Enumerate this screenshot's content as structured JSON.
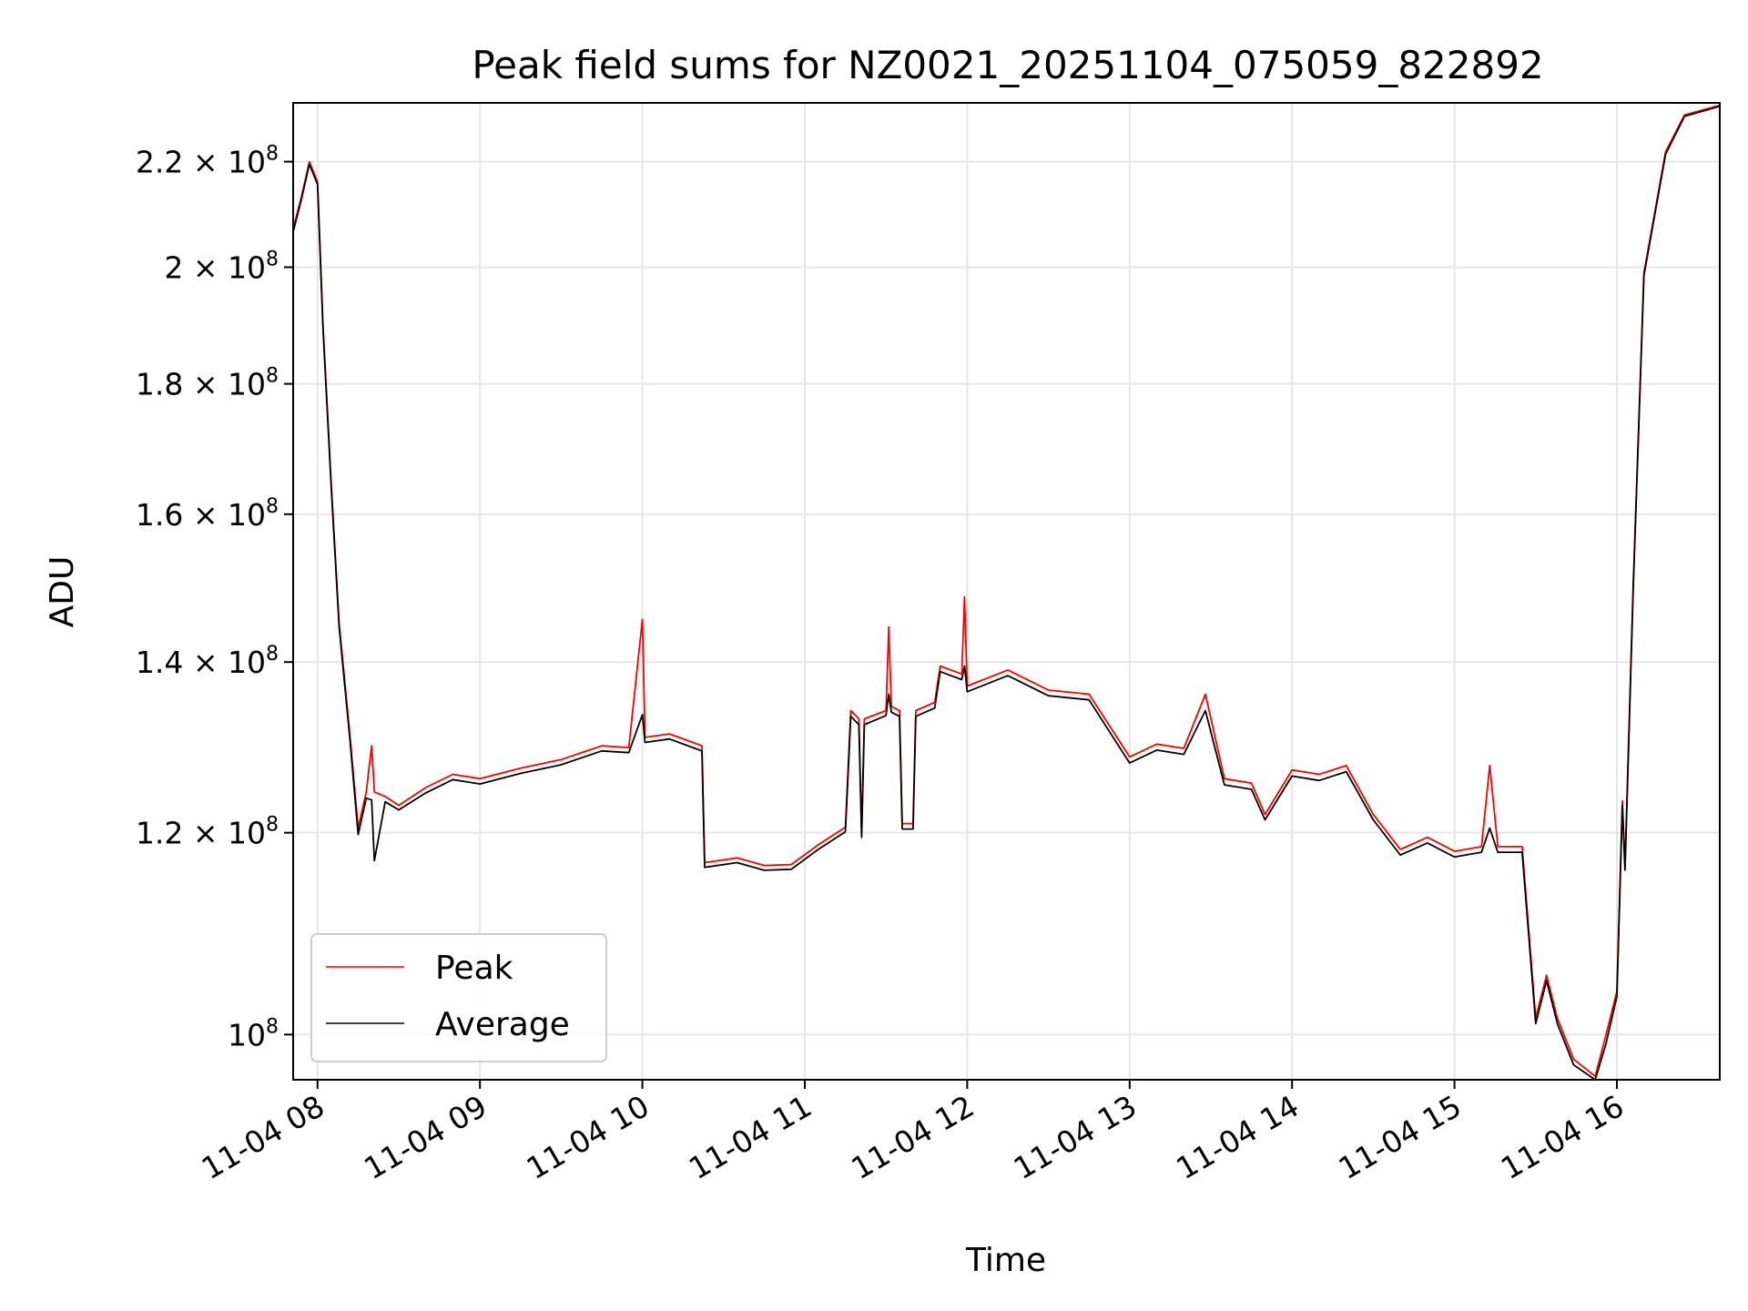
{
  "chart_data": {
    "type": "line",
    "title": "Peak field sums for NZ0021_20251104_075059_822892",
    "xlabel": "Time",
    "ylabel": "ADU",
    "yscale": "log",
    "grid": true,
    "legend_position": "lower-left",
    "xlim": [
      "2025-11-04 07:51",
      "2025-11-04 16:38"
    ],
    "ylim": [
      96000000,
      232000000
    ],
    "x_ticks": [
      {
        "time": "2025-11-04 08:00",
        "label": "11-04 08"
      },
      {
        "time": "2025-11-04 09:00",
        "label": "11-04 09"
      },
      {
        "time": "2025-11-04 10:00",
        "label": "11-04 10"
      },
      {
        "time": "2025-11-04 11:00",
        "label": "11-04 11"
      },
      {
        "time": "2025-11-04 12:00",
        "label": "11-04 12"
      },
      {
        "time": "2025-11-04 13:00",
        "label": "11-04 13"
      },
      {
        "time": "2025-11-04 14:00",
        "label": "11-04 14"
      },
      {
        "time": "2025-11-04 15:00",
        "label": "11-04 15"
      },
      {
        "time": "2025-11-04 16:00",
        "label": "11-04 16"
      }
    ],
    "y_ticks": [
      {
        "value": 100000000,
        "mantissa": "",
        "exp": "8"
      },
      {
        "value": 120000000,
        "mantissa": "1.2",
        "exp": "8"
      },
      {
        "value": 140000000,
        "mantissa": "1.4",
        "exp": "8"
      },
      {
        "value": 160000000,
        "mantissa": "1.6",
        "exp": "8"
      },
      {
        "value": 180000000,
        "mantissa": "1.8",
        "exp": "8"
      },
      {
        "value": 200000000,
        "mantissa": "2",
        "exp": "8"
      },
      {
        "value": 220000000,
        "mantissa": "2.2",
        "exp": "8"
      }
    ],
    "series": [
      {
        "name": "Peak",
        "color": "#ff0000",
        "points": [
          [
            "2025-11-04 07:51",
            207000000
          ],
          [
            "2025-11-04 07:54",
            213000000
          ],
          [
            "2025-11-04 07:57",
            220000000
          ],
          [
            "2025-11-04 08:00",
            216000000
          ],
          [
            "2025-11-04 08:02",
            190000000
          ],
          [
            "2025-11-04 08:05",
            165000000
          ],
          [
            "2025-11-04 08:08",
            145000000
          ],
          [
            "2025-11-04 08:12",
            131000000
          ],
          [
            "2025-11-04 08:15",
            120500000
          ],
          [
            "2025-11-04 08:18",
            124500000
          ],
          [
            "2025-11-04 08:20",
            129800000
          ],
          [
            "2025-11-04 08:21",
            124500000
          ],
          [
            "2025-11-04 08:25",
            124000000
          ],
          [
            "2025-11-04 08:30",
            123000000
          ],
          [
            "2025-11-04 08:40",
            125000000
          ],
          [
            "2025-11-04 08:50",
            126500000
          ],
          [
            "2025-11-04 09:00",
            126000000
          ],
          [
            "2025-11-04 09:15",
            127200000
          ],
          [
            "2025-11-04 09:30",
            128200000
          ],
          [
            "2025-11-04 09:45",
            129800000
          ],
          [
            "2025-11-04 09:55",
            129600000
          ],
          [
            "2025-11-04 10:00",
            145500000
          ],
          [
            "2025-11-04 10:01",
            130800000
          ],
          [
            "2025-11-04 10:10",
            131200000
          ],
          [
            "2025-11-04 10:22",
            129800000
          ],
          [
            "2025-11-04 10:23",
            116800000
          ],
          [
            "2025-11-04 10:35",
            117300000
          ],
          [
            "2025-11-04 10:45",
            116500000
          ],
          [
            "2025-11-04 10:55",
            116600000
          ],
          [
            "2025-11-04 11:05",
            118700000
          ],
          [
            "2025-11-04 11:15",
            120600000
          ],
          [
            "2025-11-04 11:17",
            134000000
          ],
          [
            "2025-11-04 11:20",
            133000000
          ],
          [
            "2025-11-04 11:21",
            120000000
          ],
          [
            "2025-11-04 11:22",
            133000000
          ],
          [
            "2025-11-04 11:30",
            134000000
          ],
          [
            "2025-11-04 11:31",
            144500000
          ],
          [
            "2025-11-04 11:32",
            134500000
          ],
          [
            "2025-11-04 11:35",
            134000000
          ],
          [
            "2025-11-04 11:36",
            121000000
          ],
          [
            "2025-11-04 11:40",
            121000000
          ],
          [
            "2025-11-04 11:41",
            134000000
          ],
          [
            "2025-11-04 11:48",
            135000000
          ],
          [
            "2025-11-04 11:50",
            139500000
          ],
          [
            "2025-11-04 11:58",
            138500000
          ],
          [
            "2025-11-04 11:59",
            148500000
          ],
          [
            "2025-11-04 12:00",
            137000000
          ],
          [
            "2025-11-04 12:15",
            139000000
          ],
          [
            "2025-11-04 12:30",
            136500000
          ],
          [
            "2025-11-04 12:45",
            136000000
          ],
          [
            "2025-11-04 13:00",
            128500000
          ],
          [
            "2025-11-04 13:10",
            130000000
          ],
          [
            "2025-11-04 13:20",
            129500000
          ],
          [
            "2025-11-04 13:28",
            136000000
          ],
          [
            "2025-11-04 13:35",
            126000000
          ],
          [
            "2025-11-04 13:45",
            125500000
          ],
          [
            "2025-11-04 13:50",
            122000000
          ],
          [
            "2025-11-04 14:00",
            127000000
          ],
          [
            "2025-11-04 14:10",
            126500000
          ],
          [
            "2025-11-04 14:20",
            127500000
          ],
          [
            "2025-11-04 14:30",
            122000000
          ],
          [
            "2025-11-04 14:40",
            118200000
          ],
          [
            "2025-11-04 14:50",
            119500000
          ],
          [
            "2025-11-04 15:00",
            118000000
          ],
          [
            "2025-11-04 15:10",
            118500000
          ],
          [
            "2025-11-04 15:13",
            127500000
          ],
          [
            "2025-11-04 15:16",
            118500000
          ],
          [
            "2025-11-04 15:25",
            118500000
          ],
          [
            "2025-11-04 15:30",
            101500000
          ],
          [
            "2025-11-04 15:34",
            105500000
          ],
          [
            "2025-11-04 15:38",
            101500000
          ],
          [
            "2025-11-04 15:44",
            97800000
          ],
          [
            "2025-11-04 15:52",
            96300000
          ],
          [
            "2025-11-04 15:56",
            100000000
          ],
          [
            "2025-11-04 16:00",
            104000000
          ],
          [
            "2025-11-04 16:02",
            123500000
          ],
          [
            "2025-11-04 16:03",
            116500000
          ],
          [
            "2025-11-04 16:06",
            150000000
          ],
          [
            "2025-11-04 16:10",
            199000000
          ],
          [
            "2025-11-04 16:18",
            222000000
          ],
          [
            "2025-11-04 16:25",
            229500000
          ],
          [
            "2025-11-04 16:38",
            231500000
          ]
        ]
      },
      {
        "name": "Average",
        "color": "#000000",
        "points": [
          [
            "2025-11-04 07:51",
            206500000
          ],
          [
            "2025-11-04 07:54",
            212500000
          ],
          [
            "2025-11-04 07:57",
            219500000
          ],
          [
            "2025-11-04 08:00",
            215500000
          ],
          [
            "2025-11-04 08:02",
            189500000
          ],
          [
            "2025-11-04 08:05",
            164500000
          ],
          [
            "2025-11-04 08:08",
            144500000
          ],
          [
            "2025-11-04 08:12",
            130500000
          ],
          [
            "2025-11-04 08:15",
            119800000
          ],
          [
            "2025-11-04 08:18",
            123800000
          ],
          [
            "2025-11-04 08:20",
            123600000
          ],
          [
            "2025-11-04 08:21",
            117000000
          ],
          [
            "2025-11-04 08:25",
            123400000
          ],
          [
            "2025-11-04 08:30",
            122500000
          ],
          [
            "2025-11-04 08:40",
            124400000
          ],
          [
            "2025-11-04 08:50",
            125900000
          ],
          [
            "2025-11-04 09:00",
            125400000
          ],
          [
            "2025-11-04 09:15",
            126600000
          ],
          [
            "2025-11-04 09:30",
            127600000
          ],
          [
            "2025-11-04 09:45",
            129200000
          ],
          [
            "2025-11-04 09:55",
            129000000
          ],
          [
            "2025-11-04 10:00",
            133500000
          ],
          [
            "2025-11-04 10:01",
            130200000
          ],
          [
            "2025-11-04 10:10",
            130600000
          ],
          [
            "2025-11-04 10:22",
            129200000
          ],
          [
            "2025-11-04 10:23",
            116300000
          ],
          [
            "2025-11-04 10:35",
            116800000
          ],
          [
            "2025-11-04 10:45",
            116000000
          ],
          [
            "2025-11-04 10:55",
            116100000
          ],
          [
            "2025-11-04 11:05",
            118200000
          ],
          [
            "2025-11-04 11:15",
            120100000
          ],
          [
            "2025-11-04 11:17",
            133300000
          ],
          [
            "2025-11-04 11:20",
            132300000
          ],
          [
            "2025-11-04 11:21",
            119500000
          ],
          [
            "2025-11-04 11:22",
            132300000
          ],
          [
            "2025-11-04 11:30",
            133400000
          ],
          [
            "2025-11-04 11:31",
            136000000
          ],
          [
            "2025-11-04 11:32",
            133800000
          ],
          [
            "2025-11-04 11:35",
            133300000
          ],
          [
            "2025-11-04 11:36",
            120400000
          ],
          [
            "2025-11-04 11:40",
            120400000
          ],
          [
            "2025-11-04 11:41",
            133300000
          ],
          [
            "2025-11-04 11:48",
            134300000
          ],
          [
            "2025-11-04 11:50",
            138800000
          ],
          [
            "2025-11-04 11:58",
            137800000
          ],
          [
            "2025-11-04 11:59",
            139500000
          ],
          [
            "2025-11-04 12:00",
            136300000
          ],
          [
            "2025-11-04 12:15",
            138300000
          ],
          [
            "2025-11-04 12:30",
            135800000
          ],
          [
            "2025-11-04 12:45",
            135300000
          ],
          [
            "2025-11-04 13:00",
            127800000
          ],
          [
            "2025-11-04 13:10",
            129300000
          ],
          [
            "2025-11-04 13:20",
            128800000
          ],
          [
            "2025-11-04 13:28",
            134000000
          ],
          [
            "2025-11-04 13:35",
            125300000
          ],
          [
            "2025-11-04 13:45",
            124800000
          ],
          [
            "2025-11-04 13:50",
            121400000
          ],
          [
            "2025-11-04 14:00",
            126300000
          ],
          [
            "2025-11-04 14:10",
            125800000
          ],
          [
            "2025-11-04 14:20",
            126800000
          ],
          [
            "2025-11-04 14:30",
            121400000
          ],
          [
            "2025-11-04 14:40",
            117600000
          ],
          [
            "2025-11-04 14:50",
            118900000
          ],
          [
            "2025-11-04 15:00",
            117400000
          ],
          [
            "2025-11-04 15:10",
            117900000
          ],
          [
            "2025-11-04 15:13",
            120500000
          ],
          [
            "2025-11-04 15:16",
            117900000
          ],
          [
            "2025-11-04 15:25",
            117900000
          ],
          [
            "2025-11-04 15:30",
            101000000
          ],
          [
            "2025-11-04 15:34",
            105000000
          ],
          [
            "2025-11-04 15:38",
            101000000
          ],
          [
            "2025-11-04 15:44",
            97300000
          ],
          [
            "2025-11-04 15:52",
            96000000
          ],
          [
            "2025-11-04 15:56",
            99200000
          ],
          [
            "2025-11-04 16:00",
            103500000
          ],
          [
            "2025-11-04 16:02",
            123000000
          ],
          [
            "2025-11-04 16:03",
            116000000
          ],
          [
            "2025-11-04 16:06",
            149500000
          ],
          [
            "2025-11-04 16:10",
            198500000
          ],
          [
            "2025-11-04 16:18",
            221500000
          ],
          [
            "2025-11-04 16:25",
            229200000
          ],
          [
            "2025-11-04 16:38",
            231300000
          ]
        ]
      }
    ]
  }
}
